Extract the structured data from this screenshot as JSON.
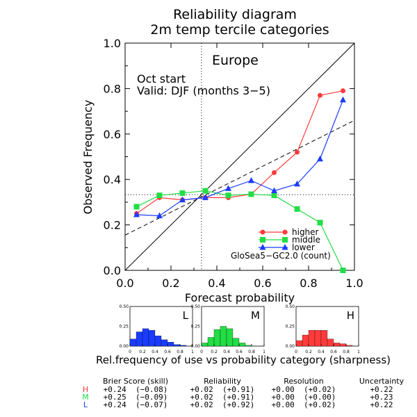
{
  "chart_data": [
    {
      "type": "line",
      "title": "Reliability diagram",
      "subtitle": "2m temp tercile categories",
      "xlabel": "Forecast probability",
      "ylabel": "Observed Frequency",
      "xlim": [
        0,
        1
      ],
      "ylim": [
        0,
        1
      ],
      "xticks": [
        "0.0",
        "0.2",
        "0.4",
        "0.6",
        "0.8",
        "1.0"
      ],
      "yticks": [
        "0.0",
        "0.2",
        "0.4",
        "0.6",
        "0.8",
        "1.0"
      ],
      "region": "Europe",
      "annotations": [
        "Oct start",
        "Valid: DJF (months 3−5)"
      ],
      "model": "GloSea5−GC2.0 (count)",
      "climatology": 0.333,
      "reference_lines": [
        "perfect reliability diagonal",
        "dashed regression line",
        "dotted climatology lines"
      ],
      "regression_line": {
        "x": [
          0,
          1
        ],
        "y": [
          0.155,
          0.66
        ]
      },
      "legend_position": "bottom-right",
      "x": [
        0.05,
        0.15,
        0.25,
        0.35,
        0.45,
        0.55,
        0.65,
        0.75,
        0.85,
        0.95
      ],
      "series": [
        {
          "name": "higher",
          "color": "#ff3b3b",
          "marker": "circle",
          "values": [
            0.25,
            0.32,
            0.31,
            0.32,
            0.32,
            0.335,
            0.43,
            0.52,
            0.77,
            0.79
          ]
        },
        {
          "name": "middle",
          "color": "#22dd44",
          "marker": "square",
          "values": [
            0.28,
            0.33,
            0.34,
            0.35,
            0.33,
            0.335,
            0.33,
            0.27,
            0.21,
            0.0
          ]
        },
        {
          "name": "lower",
          "color": "#1a3cff",
          "marker": "triangle",
          "values": [
            0.245,
            0.24,
            0.31,
            0.32,
            0.36,
            0.395,
            0.35,
            0.38,
            0.49,
            0.75
          ]
        }
      ]
    },
    {
      "type": "bar",
      "caption": "Rel.frequency of use vs probability category (sharpness)",
      "xticks": [
        "0",
        "0.2",
        "0.4",
        "0.6",
        "0.8",
        "1"
      ],
      "yticks": [
        "0.00",
        "0.25",
        "0.50"
      ],
      "ylim": [
        0,
        0.5
      ],
      "panels": [
        {
          "label": "L",
          "color": "#1a3cff",
          "values": [
            0.09,
            0.18,
            0.22,
            0.2,
            0.13,
            0.08,
            0.05,
            0.02,
            0.01,
            0.0
          ]
        },
        {
          "label": "M",
          "color": "#22dd44",
          "values": [
            0.04,
            0.11,
            0.21,
            0.25,
            0.22,
            0.1,
            0.04,
            0.01,
            0.0,
            0.0
          ]
        },
        {
          "label": "H",
          "color": "#ff3b3b",
          "values": [
            0.07,
            0.14,
            0.2,
            0.2,
            0.2,
            0.09,
            0.04,
            0.03,
            0.01,
            0.0
          ]
        }
      ]
    }
  ],
  "scores": {
    "headers": [
      "Brier Score (skill)",
      "Reliability",
      "Resolution",
      "Uncertainty"
    ],
    "rows": [
      {
        "cat": "H",
        "color": "#ff3b3b",
        "brier": "+0.24  (−0.08)",
        "reliability": "+0.02  (+0.91)",
        "resolution": "+0.00  (+0.02)",
        "uncertainty": "+0.22"
      },
      {
        "cat": "M",
        "color": "#22dd44",
        "brier": "+0.25  (−0.09)",
        "reliability": "+0.02  (+0.91)",
        "resolution": "+0.00  (+0.00)",
        "uncertainty": "+0.23"
      },
      {
        "cat": "L",
        "color": "#1a3cff",
        "brier": "+0.24  (−0.07)",
        "reliability": "+0.02  (+0.92)",
        "resolution": "+0.00  (+0.02)",
        "uncertainty": "+0.22"
      }
    ]
  }
}
